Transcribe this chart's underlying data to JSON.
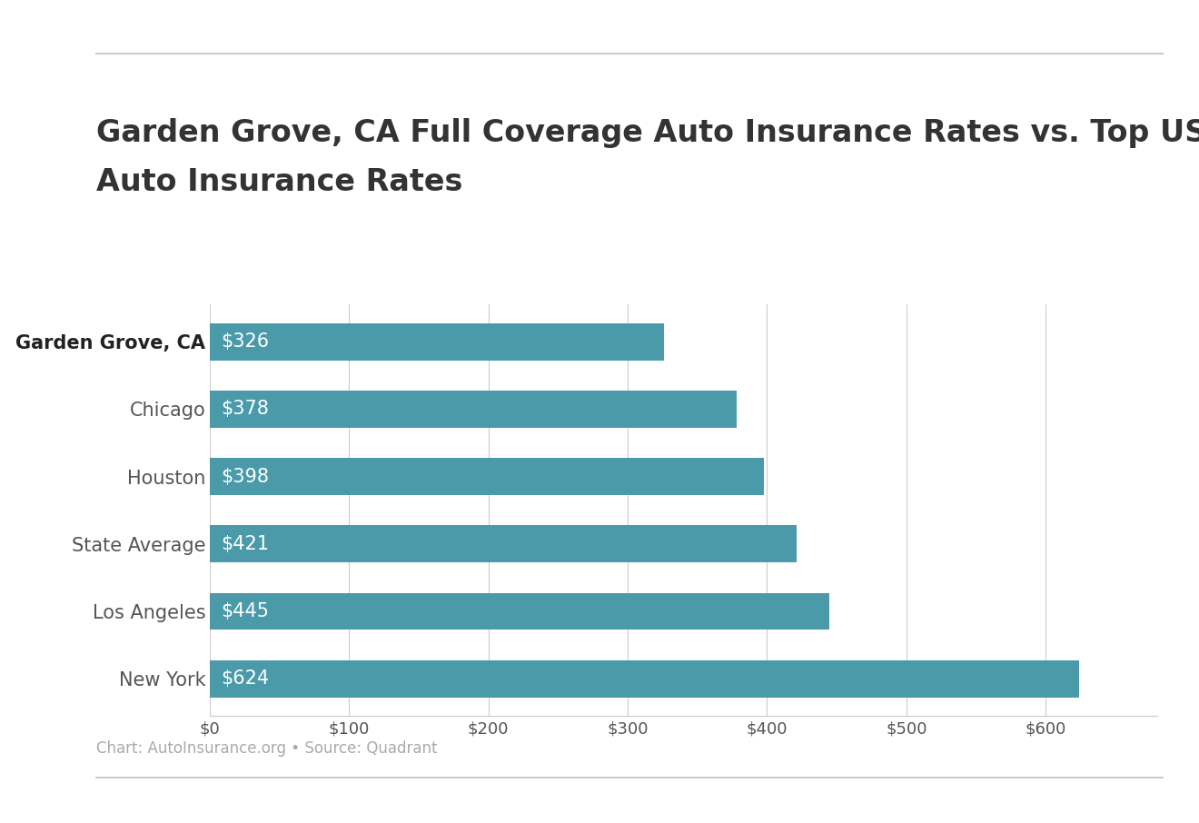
{
  "title_line1": "Garden Grove, CA Full Coverage Auto Insurance Rates vs. Top US Metro",
  "title_line2": "Auto Insurance Rates",
  "categories": [
    "Garden Grove, CA",
    "Chicago",
    "Houston",
    "State Average",
    "Los Angeles",
    "New York"
  ],
  "values": [
    326,
    378,
    398,
    421,
    445,
    624
  ],
  "labels": [
    "$326",
    "$378",
    "$398",
    "$421",
    "$445",
    "$624"
  ],
  "bar_color": "#4a9aaa",
  "label_color": "#ffffff",
  "title_color": "#333333",
  "tick_label_color": "#555555",
  "background_color": "#ffffff",
  "subtitle": "Chart: AutoInsurance.org • Source: Quadrant",
  "xlim": [
    0,
    680
  ],
  "xtick_values": [
    0,
    100,
    200,
    300,
    400,
    500,
    600
  ],
  "xtick_labels": [
    "$0",
    "$100",
    "$200",
    "$300",
    "$400",
    "$500",
    "$600"
  ],
  "title_fontsize": 24,
  "label_fontsize": 15,
  "tick_fontsize": 13,
  "subtitle_fontsize": 12,
  "bar_height": 0.55
}
